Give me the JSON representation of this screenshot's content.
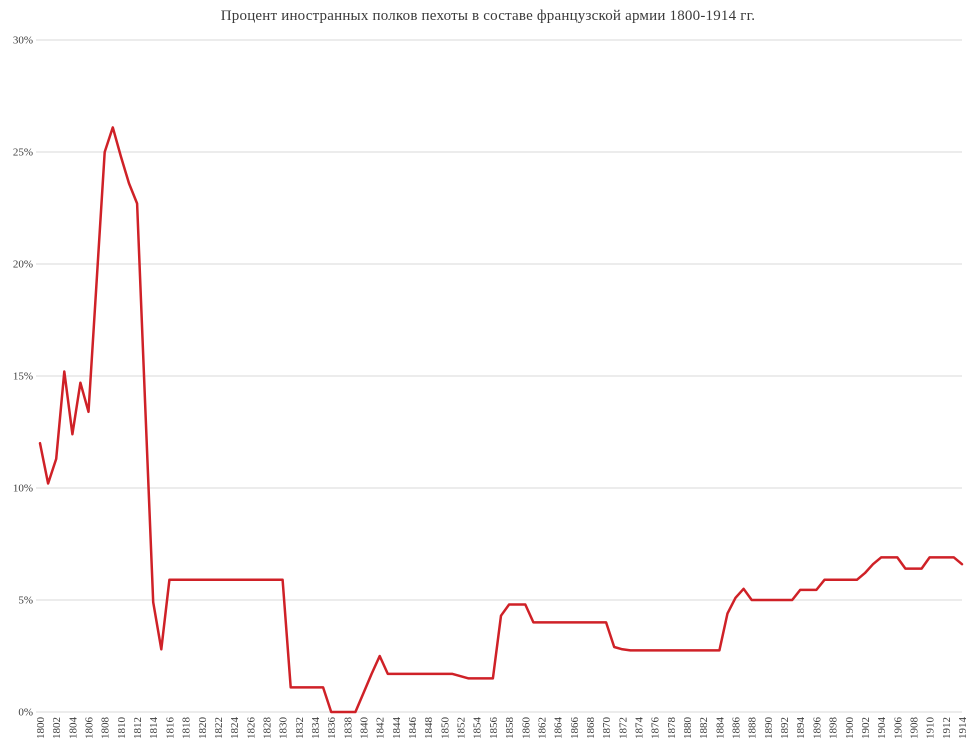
{
  "page": {
    "background": "#ffffff"
  },
  "chart_data": {
    "type": "line",
    "title": "Процент иностранных полков пехоты в составе французской армии 1800-1914 гг.",
    "xlabel": "",
    "ylabel": "",
    "x_start": 1800,
    "x_end": 1914,
    "x_tick_step": 2,
    "ylim": [
      0,
      30
    ],
    "y_tick_step": 5,
    "y_tick_labels": [
      "0%",
      "5%",
      "10%",
      "15%",
      "20%",
      "25%",
      "30%"
    ],
    "grid": "horizontal",
    "legend_position": "none",
    "line_color": "#cf2127",
    "grid_color": "#d9d9d9",
    "label_color": "#3d3d3d",
    "series": [
      {
        "name": "Процент иностранных полков пехоты",
        "x": [
          1800,
          1801,
          1802,
          1803,
          1804,
          1805,
          1806,
          1807,
          1808,
          1809,
          1810,
          1811,
          1812,
          1813,
          1814,
          1815,
          1816,
          1817,
          1818,
          1819,
          1820,
          1821,
          1822,
          1823,
          1824,
          1825,
          1826,
          1827,
          1828,
          1829,
          1830,
          1831,
          1832,
          1833,
          1834,
          1835,
          1836,
          1837,
          1838,
          1839,
          1840,
          1841,
          1842,
          1843,
          1844,
          1845,
          1846,
          1847,
          1848,
          1849,
          1850,
          1851,
          1852,
          1853,
          1854,
          1855,
          1856,
          1857,
          1858,
          1859,
          1860,
          1861,
          1862,
          1863,
          1864,
          1865,
          1866,
          1867,
          1868,
          1869,
          1870,
          1871,
          1872,
          1873,
          1874,
          1875,
          1876,
          1877,
          1878,
          1879,
          1880,
          1881,
          1882,
          1883,
          1884,
          1885,
          1886,
          1887,
          1888,
          1889,
          1890,
          1891,
          1892,
          1893,
          1894,
          1895,
          1896,
          1897,
          1898,
          1899,
          1900,
          1901,
          1902,
          1903,
          1904,
          1905,
          1906,
          1907,
          1908,
          1909,
          1910,
          1911,
          1912,
          1913,
          1914
        ],
        "values": [
          12.0,
          10.2,
          11.3,
          15.2,
          12.4,
          14.7,
          13.4,
          19.2,
          25.0,
          26.1,
          24.8,
          23.6,
          22.7,
          13.8,
          4.9,
          2.8,
          5.9,
          5.9,
          5.9,
          5.9,
          5.9,
          5.9,
          5.9,
          5.9,
          5.9,
          5.9,
          5.9,
          5.9,
          5.9,
          5.9,
          5.9,
          1.1,
          1.1,
          1.1,
          1.1,
          1.1,
          0,
          0,
          0,
          0,
          0.85,
          1.7,
          2.5,
          1.7,
          1.7,
          1.7,
          1.7,
          1.7,
          1.7,
          1.7,
          1.7,
          1.7,
          1.6,
          1.5,
          1.5,
          1.5,
          1.5,
          4.3,
          4.8,
          4.8,
          4.8,
          4.0,
          4.0,
          4.0,
          4.0,
          4.0,
          4.0,
          4.0,
          4.0,
          4.0,
          4.0,
          2.9,
          2.8,
          2.75,
          2.75,
          2.75,
          2.75,
          2.75,
          2.75,
          2.75,
          2.75,
          2.75,
          2.75,
          2.75,
          2.75,
          4.4,
          5.1,
          5.5,
          5.0,
          5.0,
          5.0,
          5.0,
          5.0,
          5.0,
          5.45,
          5.45,
          5.45,
          5.9,
          5.9,
          5.9,
          5.9,
          5.9,
          6.2,
          6.6,
          6.9,
          6.9,
          6.9,
          6.4,
          6.4,
          6.4,
          6.9,
          6.9,
          6.9,
          6.9,
          6.6
        ]
      }
    ]
  }
}
